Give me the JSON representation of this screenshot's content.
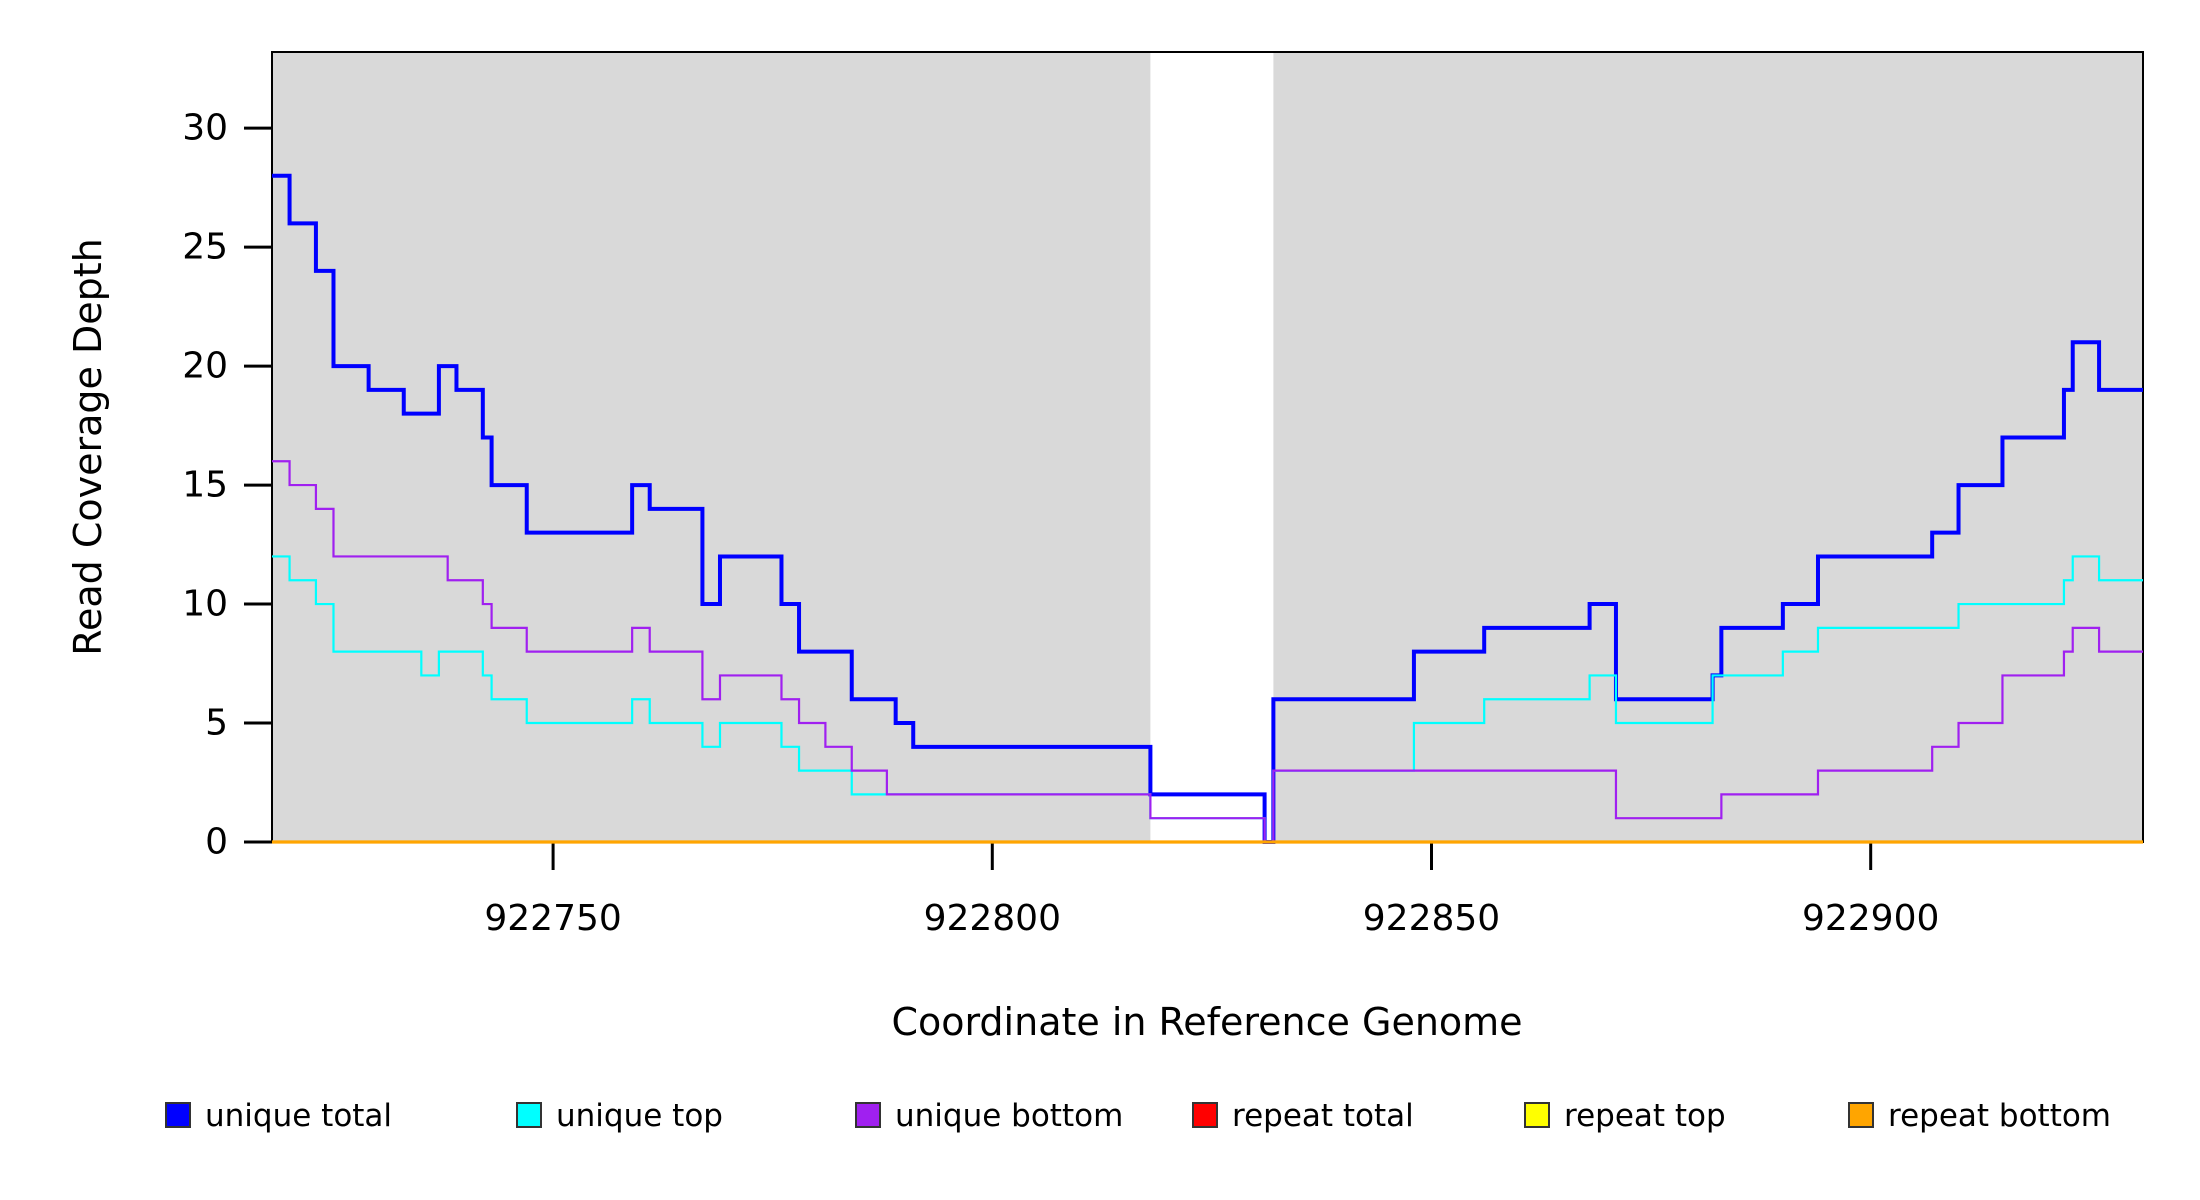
{
  "chart_data": {
    "type": "step",
    "title": "",
    "xlabel": "Coordinate in Reference Genome",
    "ylabel": "Read Coverage Depth",
    "xlim": [
      922718,
      922931
    ],
    "ylim": [
      0,
      33.2
    ],
    "xticks": [
      922750,
      922800,
      922850,
      922900
    ],
    "yticks": [
      0,
      5,
      10,
      15,
      20,
      25,
      30
    ],
    "grid": false,
    "plot_bg": "#ffffff",
    "shade_color": "#d9d9d9",
    "shaded_regions": [
      [
        922718,
        922818
      ],
      [
        922832,
        922931
      ]
    ],
    "gap_region": [
      922818,
      922832
    ],
    "legend_position": "bottom",
    "legend_swatch_border": "#333333",
    "axis_color": "#000000",
    "series": [
      {
        "name": "unique total",
        "color": "#0000ff",
        "width": 4,
        "points": [
          [
            922718,
            28
          ],
          [
            922720,
            26
          ],
          [
            922723,
            24
          ],
          [
            922725,
            20
          ],
          [
            922729,
            19
          ],
          [
            922733,
            18
          ],
          [
            922737,
            20
          ],
          [
            922739,
            19
          ],
          [
            922742,
            17
          ],
          [
            922743,
            15
          ],
          [
            922747,
            13
          ],
          [
            922759,
            15
          ],
          [
            922761,
            14
          ],
          [
            922767,
            10
          ],
          [
            922769,
            12
          ],
          [
            922776,
            10
          ],
          [
            922778,
            8
          ],
          [
            922784,
            6
          ],
          [
            922789,
            5
          ],
          [
            922791,
            4
          ],
          [
            922818,
            2
          ],
          [
            922831,
            0
          ],
          [
            922832,
            6
          ],
          [
            922848,
            8
          ],
          [
            922856,
            9
          ],
          [
            922868,
            10
          ],
          [
            922871,
            6
          ],
          [
            922882,
            7
          ],
          [
            922883,
            9
          ],
          [
            922890,
            10
          ],
          [
            922894,
            12
          ],
          [
            922907,
            13
          ],
          [
            922910,
            15
          ],
          [
            922915,
            17
          ],
          [
            922922,
            19
          ],
          [
            922923,
            21
          ],
          [
            922926,
            19
          ]
        ]
      },
      {
        "name": "unique top",
        "color": "#00ffff",
        "width": 2.2,
        "points": [
          [
            922718,
            12
          ],
          [
            922720,
            11
          ],
          [
            922723,
            10
          ],
          [
            922725,
            8
          ],
          [
            922735,
            7
          ],
          [
            922737,
            8
          ],
          [
            922742,
            7
          ],
          [
            922743,
            6
          ],
          [
            922747,
            5
          ],
          [
            922759,
            6
          ],
          [
            922761,
            5
          ],
          [
            922767,
            4
          ],
          [
            922769,
            5
          ],
          [
            922776,
            4
          ],
          [
            922778,
            3
          ],
          [
            922784,
            2
          ],
          [
            922818,
            1
          ],
          [
            922831,
            0
          ],
          [
            922832,
            3
          ],
          [
            922848,
            5
          ],
          [
            922856,
            6
          ],
          [
            922868,
            7
          ],
          [
            922871,
            5
          ],
          [
            922882,
            7
          ],
          [
            922890,
            8
          ],
          [
            922894,
            9
          ],
          [
            922910,
            10
          ],
          [
            922922,
            11
          ],
          [
            922923,
            12
          ],
          [
            922926,
            11
          ]
        ]
      },
      {
        "name": "unique bottom",
        "color": "#a020f0",
        "width": 2.2,
        "points": [
          [
            922718,
            16
          ],
          [
            922720,
            15
          ],
          [
            922723,
            14
          ],
          [
            922725,
            12
          ],
          [
            922738,
            11
          ],
          [
            922742,
            10
          ],
          [
            922743,
            9
          ],
          [
            922747,
            8
          ],
          [
            922759,
            9
          ],
          [
            922761,
            8
          ],
          [
            922767,
            6
          ],
          [
            922769,
            7
          ],
          [
            922776,
            6
          ],
          [
            922778,
            5
          ],
          [
            922781,
            4
          ],
          [
            922784,
            3
          ],
          [
            922788,
            2
          ],
          [
            922818,
            1
          ],
          [
            922831,
            0
          ],
          [
            922832,
            3
          ],
          [
            922871,
            1
          ],
          [
            922883,
            2
          ],
          [
            922894,
            3
          ],
          [
            922907,
            4
          ],
          [
            922910,
            5
          ],
          [
            922915,
            7
          ],
          [
            922922,
            8
          ],
          [
            922923,
            9
          ],
          [
            922926,
            8
          ]
        ]
      },
      {
        "name": "repeat total",
        "color": "#ff0000",
        "width": 2.2,
        "points": [
          [
            922718,
            0
          ]
        ]
      },
      {
        "name": "repeat top",
        "color": "#ffff00",
        "width": 2.2,
        "points": [
          [
            922718,
            0
          ]
        ]
      },
      {
        "name": "repeat bottom",
        "color": "#ffa500",
        "width": 3.2,
        "points": [
          [
            922718,
            0
          ]
        ]
      }
    ]
  },
  "labels": {
    "x_axis": "Coordinate in Reference Genome",
    "y_axis": "Read Coverage Depth"
  }
}
